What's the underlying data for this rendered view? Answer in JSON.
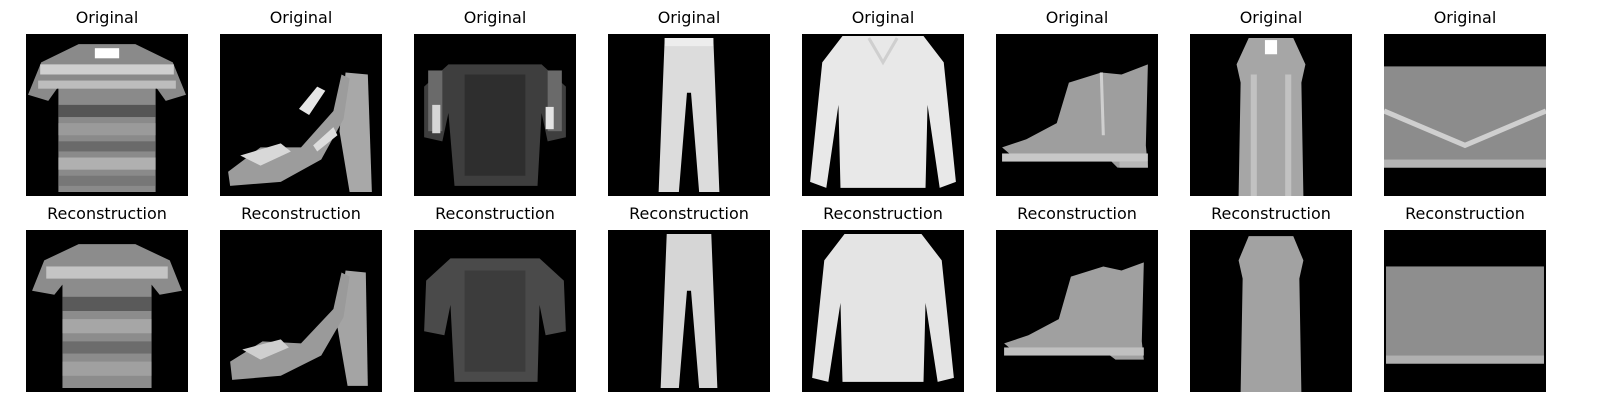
{
  "rows": [
    {
      "label": "Original",
      "items": [
        {
          "subject": "striped-tshirt-icon"
        },
        {
          "subject": "sandal-icon"
        },
        {
          "subject": "dark-top-icon"
        },
        {
          "subject": "trouser-icon"
        },
        {
          "subject": "pullover-icon"
        },
        {
          "subject": "ankle-boot-icon"
        },
        {
          "subject": "dress-icon"
        },
        {
          "subject": "bag-icon"
        }
      ]
    },
    {
      "label": "Reconstruction",
      "items": [
        {
          "subject": "striped-tshirt-icon"
        },
        {
          "subject": "sandal-icon"
        },
        {
          "subject": "dark-top-icon"
        },
        {
          "subject": "trouser-icon"
        },
        {
          "subject": "pullover-icon"
        },
        {
          "subject": "ankle-boot-icon"
        },
        {
          "subject": "dress-icon"
        },
        {
          "subject": "bag-icon"
        }
      ]
    }
  ]
}
